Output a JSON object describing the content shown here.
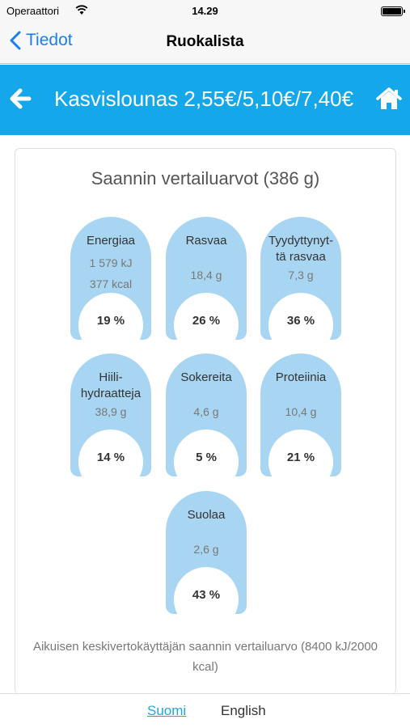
{
  "status_bar": {
    "carrier": "Operaattori",
    "time": "14.29"
  },
  "nav": {
    "back_label": "Tiedot",
    "title": "Ruokalista"
  },
  "header": {
    "title": "Kasvislounas 2,55€/5,10€/7,40€"
  },
  "card": {
    "title": "Saannin vertailuarvot (386 g)",
    "nutrients": [
      {
        "label": "Energiaa",
        "values": [
          "1 579 kJ",
          "377 kcal"
        ],
        "percent": "19 %"
      },
      {
        "label": "Rasvaa",
        "values": [
          "18,4 g"
        ],
        "percent": "26 %"
      },
      {
        "label": "Tyydyttynyt-\ntä rasvaa",
        "values": [
          "7,3 g"
        ],
        "percent": "36 %"
      },
      {
        "label": "Hiili-\nhydraatteja",
        "values": [
          "38,9 g"
        ],
        "percent": "14 %"
      },
      {
        "label": "Sokereita",
        "values": [
          "4,6 g"
        ],
        "percent": "5 %"
      },
      {
        "label": "Proteiinia",
        "values": [
          "10,4 g"
        ],
        "percent": "21 %"
      },
      {
        "label": "Suolaa",
        "values": [
          "2,6 g"
        ],
        "percent": "43 %"
      }
    ],
    "footnote": "Aikuisen keskivertokäyttäjän saannin vertailuarvo (8400 kJ/2000 kcal)"
  },
  "languages": {
    "suomi": "Suomi",
    "english": "English"
  },
  "colors": {
    "header_bg": "#14a7e9",
    "tile_bg": "#a8d6f2",
    "link": "#1a7ef5"
  },
  "icons": {
    "back": "arrow-left-icon",
    "home": "home-icon",
    "nav_back": "chevron-left-icon"
  }
}
